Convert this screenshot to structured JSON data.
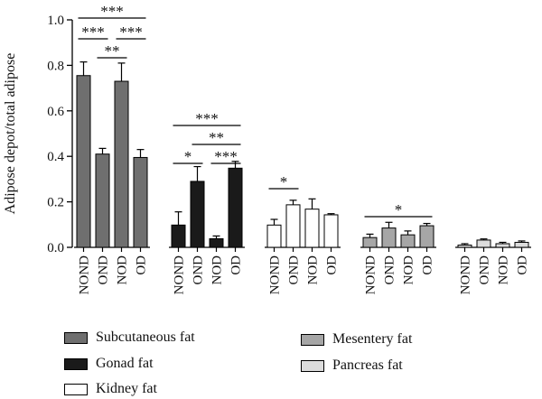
{
  "chart_data": {
    "type": "bar",
    "ylabel": "Adipose depot/total adipose",
    "xlabel": "",
    "ylim": [
      0,
      1.0
    ],
    "yticks": [
      "0.0",
      "0.2",
      "0.4",
      "0.6",
      "0.8",
      "1.0"
    ],
    "categories": [
      "NOND",
      "OND",
      "NOD",
      "OD"
    ],
    "legend_position": "bottom",
    "series": [
      {
        "name": "Subcutaneous fat",
        "color": "#6f6f6f",
        "values": [
          0.755,
          0.41,
          0.73,
          0.395
        ],
        "errors": [
          0.06,
          0.025,
          0.08,
          0.035
        ]
      },
      {
        "name": "Gonad fat",
        "color": "#1a1a1a",
        "values": [
          0.098,
          0.29,
          0.038,
          0.348
        ],
        "errors": [
          0.058,
          0.065,
          0.012,
          0.03
        ]
      },
      {
        "name": "Kidney fat",
        "color": "#ffffff",
        "values": [
          0.098,
          0.187,
          0.168,
          0.143
        ],
        "errors": [
          0.025,
          0.02,
          0.045,
          0.005
        ]
      },
      {
        "name": "Mesentery fat",
        "color": "#a6a6a6",
        "values": [
          0.043,
          0.085,
          0.055,
          0.095
        ],
        "errors": [
          0.015,
          0.025,
          0.017,
          0.01
        ]
      },
      {
        "name": "Pancreas fat",
        "color": "#dcdcdc",
        "values": [
          0.01,
          0.032,
          0.016,
          0.022
        ],
        "errors": [
          0.006,
          0.005,
          0.006,
          0.006
        ]
      }
    ],
    "significance": [
      {
        "group": 0,
        "from": 0,
        "to": 3,
        "label": "***"
      },
      {
        "group": 0,
        "from": 0,
        "to": 1,
        "label": "***"
      },
      {
        "group": 0,
        "from": 2,
        "to": 3,
        "label": "***"
      },
      {
        "group": 0,
        "from": 1,
        "to": 2,
        "label": "**"
      },
      {
        "group": 1,
        "from": 0,
        "to": 3,
        "label": "***"
      },
      {
        "group": 1,
        "from": 1,
        "to": 3,
        "label": "**"
      },
      {
        "group": 1,
        "from": 0,
        "to": 1,
        "label": "*"
      },
      {
        "group": 1,
        "from": 2,
        "to": 3,
        "label": "***"
      },
      {
        "group": 2,
        "from": 0,
        "to": 1,
        "label": "*"
      },
      {
        "group": 3,
        "from": 0,
        "to": 3,
        "label": "*"
      }
    ]
  },
  "legend": {
    "items": [
      {
        "label": "Subcutaneous fat",
        "color": "#6f6f6f"
      },
      {
        "label": "Gonad fat",
        "color": "#1a1a1a"
      },
      {
        "label": "Kidney fat",
        "color": "#ffffff"
      },
      {
        "label": "Mesentery fat",
        "color": "#a6a6a6"
      },
      {
        "label": "Pancreas fat",
        "color": "#dcdcdc"
      }
    ]
  }
}
